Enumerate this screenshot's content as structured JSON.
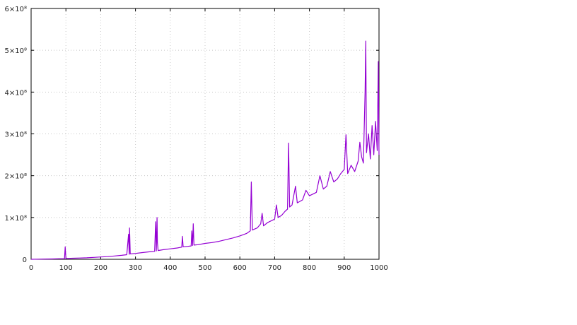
{
  "chart_data": {
    "type": "line",
    "title": "",
    "xlabel": "",
    "ylabel": "",
    "xlim": [
      0,
      1000
    ],
    "ylim": [
      0,
      600000000
    ],
    "grid": true,
    "legend": "none",
    "series_color": "#9400d3",
    "grid_color": "#c8c8c8",
    "axis_color": "#000000",
    "x_ticks": [
      {
        "value": 0,
        "label": "0"
      },
      {
        "value": 100,
        "label": "100"
      },
      {
        "value": 200,
        "label": "200"
      },
      {
        "value": 300,
        "label": "300"
      },
      {
        "value": 400,
        "label": "400"
      },
      {
        "value": 500,
        "label": "500"
      },
      {
        "value": 600,
        "label": "600"
      },
      {
        "value": 700,
        "label": "700"
      },
      {
        "value": 800,
        "label": "800"
      },
      {
        "value": 900,
        "label": "900"
      },
      {
        "value": 1000,
        "label": "1000"
      }
    ],
    "y_ticks": [
      {
        "value": 0,
        "label": "0"
      },
      {
        "value": 100000000,
        "label": "1×10⁸"
      },
      {
        "value": 200000000,
        "label": "2×10⁸"
      },
      {
        "value": 300000000,
        "label": "3×10⁸"
      },
      {
        "value": 400000000,
        "label": "4×10⁸"
      },
      {
        "value": 500000000,
        "label": "5×10⁸"
      },
      {
        "value": 600000000,
        "label": "6×10⁸"
      }
    ],
    "series": [
      {
        "values": [
          [
            0,
            0
          ],
          [
            20,
            300000
          ],
          [
            40,
            600000
          ],
          [
            60,
            900000
          ],
          [
            80,
            1300000
          ],
          [
            96,
            1500000
          ],
          [
            98,
            30000000
          ],
          [
            100,
            2000000
          ],
          [
            120,
            2500000
          ],
          [
            140,
            3000000
          ],
          [
            160,
            3500000
          ],
          [
            180,
            4500000
          ],
          [
            200,
            5500000
          ],
          [
            220,
            6500000
          ],
          [
            240,
            8000000
          ],
          [
            260,
            9500000
          ],
          [
            275,
            11000000
          ],
          [
            280,
            60000000
          ],
          [
            282,
            12000000
          ],
          [
            283,
            75000000
          ],
          [
            285,
            13000000
          ],
          [
            300,
            14000000
          ],
          [
            320,
            16000000
          ],
          [
            340,
            18000000
          ],
          [
            355,
            19000000
          ],
          [
            358,
            90000000
          ],
          [
            360,
            20000000
          ],
          [
            362,
            100000000
          ],
          [
            363,
            40000000
          ],
          [
            365,
            21000000
          ],
          [
            380,
            23000000
          ],
          [
            400,
            25000000
          ],
          [
            420,
            27000000
          ],
          [
            433,
            29000000
          ],
          [
            435,
            55000000
          ],
          [
            437,
            30000000
          ],
          [
            450,
            31000000
          ],
          [
            460,
            32000000
          ],
          [
            462,
            68000000
          ],
          [
            464,
            33000000
          ],
          [
            466,
            85000000
          ],
          [
            468,
            34000000
          ],
          [
            480,
            35000000
          ],
          [
            500,
            38000000
          ],
          [
            520,
            40000000
          ],
          [
            540,
            43000000
          ],
          [
            560,
            47000000
          ],
          [
            580,
            51000000
          ],
          [
            600,
            56000000
          ],
          [
            620,
            62000000
          ],
          [
            630,
            68000000
          ],
          [
            633,
            185000000
          ],
          [
            636,
            70000000
          ],
          [
            650,
            75000000
          ],
          [
            660,
            85000000
          ],
          [
            664,
            110000000
          ],
          [
            668,
            80000000
          ],
          [
            680,
            88000000
          ],
          [
            690,
            92000000
          ],
          [
            700,
            96000000
          ],
          [
            705,
            130000000
          ],
          [
            710,
            100000000
          ],
          [
            720,
            105000000
          ],
          [
            730,
            115000000
          ],
          [
            737,
            120000000
          ],
          [
            740,
            278000000
          ],
          [
            743,
            125000000
          ],
          [
            750,
            130000000
          ],
          [
            760,
            175000000
          ],
          [
            765,
            135000000
          ],
          [
            780,
            142000000
          ],
          [
            790,
            165000000
          ],
          [
            800,
            152000000
          ],
          [
            820,
            160000000
          ],
          [
            830,
            200000000
          ],
          [
            840,
            168000000
          ],
          [
            850,
            175000000
          ],
          [
            860,
            210000000
          ],
          [
            870,
            185000000
          ],
          [
            880,
            192000000
          ],
          [
            890,
            205000000
          ],
          [
            900,
            215000000
          ],
          [
            905,
            298000000
          ],
          [
            910,
            205000000
          ],
          [
            920,
            225000000
          ],
          [
            930,
            210000000
          ],
          [
            940,
            235000000
          ],
          [
            945,
            280000000
          ],
          [
            950,
            245000000
          ],
          [
            955,
            230000000
          ],
          [
            960,
            400000000
          ],
          [
            962,
            522000000
          ],
          [
            964,
            255000000
          ],
          [
            970,
            300000000
          ],
          [
            975,
            240000000
          ],
          [
            980,
            320000000
          ],
          [
            985,
            250000000
          ],
          [
            990,
            330000000
          ],
          [
            995,
            260000000
          ],
          [
            998,
            473000000
          ],
          [
            1000,
            250000000
          ]
        ]
      }
    ]
  }
}
